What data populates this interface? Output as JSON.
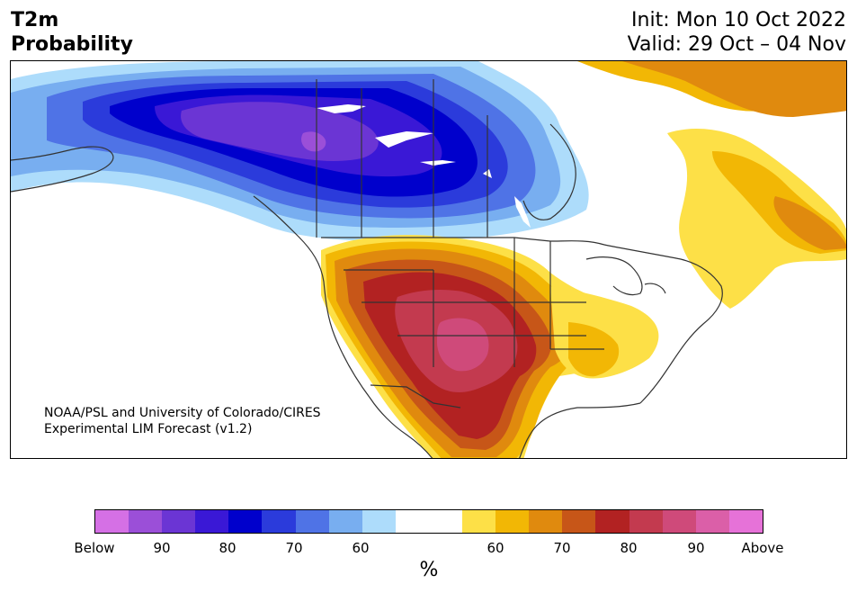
{
  "header": {
    "variable": "T2m",
    "product": "Probability",
    "init": "Init: Mon 10 Oct 2022",
    "valid": "Valid: 29 Oct – 04 Nov"
  },
  "credit": {
    "line1": "NOAA/PSL and University of Colorado/CIRES",
    "line2": "Experimental LIM Forecast (v1.2)"
  },
  "colorbar": {
    "colors": [
      "#d570e5",
      "#9b4fd8",
      "#6b35d4",
      "#3a18d6",
      "#0000cc",
      "#2b3bdb",
      "#4f73e6",
      "#78aef0",
      "#addcfb",
      "#ffffff",
      "#ffffff",
      "#fde047",
      "#f2b705",
      "#e08a0e",
      "#c75618",
      "#b22222",
      "#c33a4f",
      "#cf4a7a",
      "#db5fa8",
      "#e672d8"
    ],
    "ticks": [
      "Below",
      "90",
      "80",
      "70",
      "60",
      "60",
      "70",
      "80",
      "90",
      "Above"
    ],
    "label": "%"
  },
  "colors": {
    "land": "#ffffff",
    "border": "#333333",
    "water": "#ffffff"
  }
}
